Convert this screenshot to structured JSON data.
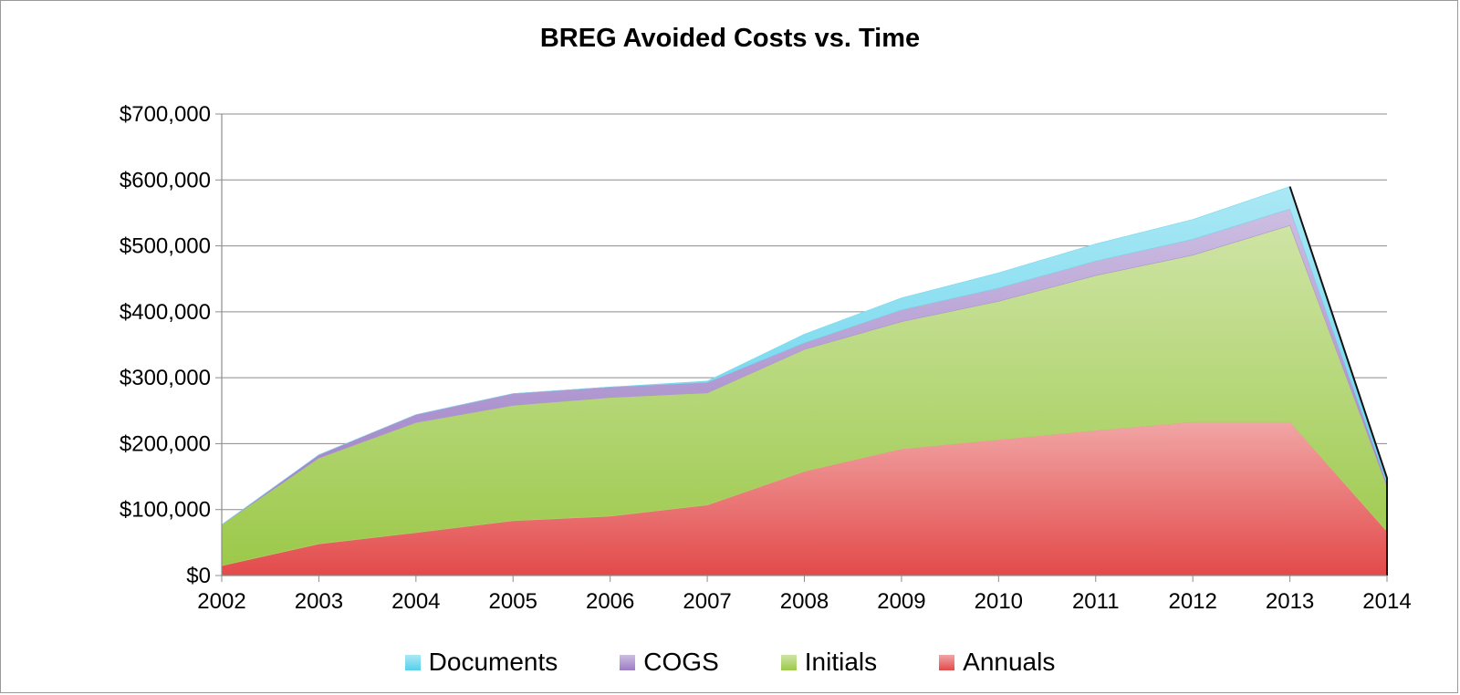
{
  "chart_data": {
    "type": "area",
    "stacked": true,
    "title": "BREG Avoided Costs vs. Time",
    "xlabel": "",
    "ylabel": "",
    "categories": [
      "2002",
      "2003",
      "2004",
      "2005",
      "2006",
      "2007",
      "2008",
      "2009",
      "2010",
      "2011",
      "2012",
      "2013",
      "2014"
    ],
    "ylim": [
      0,
      700000
    ],
    "y_ticks": [
      "$0",
      "$100,000",
      "$200,000",
      "$300,000",
      "$400,000",
      "$500,000",
      "$600,000",
      "$700,000"
    ],
    "grid": true,
    "legend_position": "bottom",
    "series": [
      {
        "name": "Annuals",
        "color": "#e34a4a",
        "values": [
          15000,
          48000,
          65000,
          83000,
          90000,
          107000,
          158000,
          192000,
          206000,
          220000,
          233000,
          233000,
          67000
        ]
      },
      {
        "name": "Initials",
        "color": "#9cc94a",
        "values": [
          62000,
          130000,
          167000,
          175000,
          180000,
          170000,
          185000,
          193000,
          210000,
          235000,
          253000,
          298000,
          68000
        ]
      },
      {
        "name": "COGS",
        "color": "#9b7cc4",
        "values": [
          0,
          5000,
          12000,
          18000,
          16000,
          16000,
          10000,
          18000,
          20000,
          22000,
          24000,
          25000,
          5000
        ]
      },
      {
        "name": "Documents",
        "color": "#56d0ea",
        "values": [
          0,
          0,
          0,
          0,
          0,
          2000,
          13000,
          18000,
          23000,
          26000,
          30000,
          34000,
          8000
        ]
      }
    ]
  }
}
